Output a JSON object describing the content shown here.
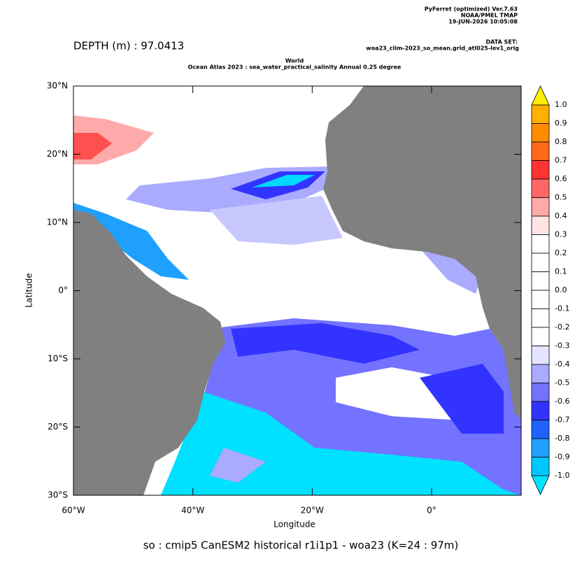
{
  "chart_data": {
    "type": "map",
    "header": [
      "PyFerret (optimized) Ver.7.63",
      "NOAA/PMEL TMAP",
      "19-JUN-2026 10:05:08"
    ],
    "dataset_label": "DATA SET:",
    "dataset": "woa23_clim-2023_so_mean.grid_atl025-lev1_orig",
    "depth_label": "DEPTH (m) : 97.0413",
    "title": [
      "World",
      "Ocean Atlas 2023 : sea_water_practical_salinity Annual  0.25 degree"
    ],
    "xlabel": "Longitude",
    "ylabel": "Latitude",
    "caption": "so : cmip5 CanESM2 historical r1i1p1 - woa23  (K=24 : 97m)",
    "xlim": [
      -60,
      15
    ],
    "ylim": [
      -30,
      30
    ],
    "xticks": [
      {
        "value": -60,
        "label": "60°W"
      },
      {
        "value": -40,
        "label": "40°W"
      },
      {
        "value": -20,
        "label": "20°W"
      },
      {
        "value": 0,
        "label": "0°"
      }
    ],
    "yticks": [
      {
        "value": 30,
        "label": "30°N"
      },
      {
        "value": 20,
        "label": "20°N"
      },
      {
        "value": 10,
        "label": "10°N"
      },
      {
        "value": 0,
        "label": "0°"
      },
      {
        "value": -10,
        "label": "10°S"
      },
      {
        "value": -20,
        "label": "20°S"
      },
      {
        "value": -30,
        "label": "30°S"
      }
    ],
    "colorbar": {
      "levels": [
        {
          "value": 1,
          "label": "1.0"
        },
        0.9,
        0.8,
        0.7,
        0.6,
        0.5,
        0.4,
        0.3,
        0.2,
        0.1,
        {
          "value": 0,
          "label": "0.0"
        },
        -0.1,
        -0.2,
        -0.3,
        -0.4,
        -0.5,
        -0.6,
        -0.7,
        -0.8,
        -0.9,
        {
          "value": -1,
          "label": "-1.0"
        }
      ],
      "colors": [
        "#ffb000",
        "#ff8c00",
        "#ff6a1a",
        "#ff3333",
        "#ff6666",
        "#ffaaaa",
        "#ffe4e4",
        "#ffffff",
        "#ffffff",
        "#ffffff",
        "#ffffff",
        "#ffffff",
        "#ffffff",
        "#e4e4ff",
        "#aaaaff",
        "#7373ff",
        "#3333ff",
        "#1f63ff",
        "#1fa0ff",
        "#00c8ff"
      ],
      "over_color": "#ffee00",
      "under_color": "#00e4ff"
    }
  }
}
